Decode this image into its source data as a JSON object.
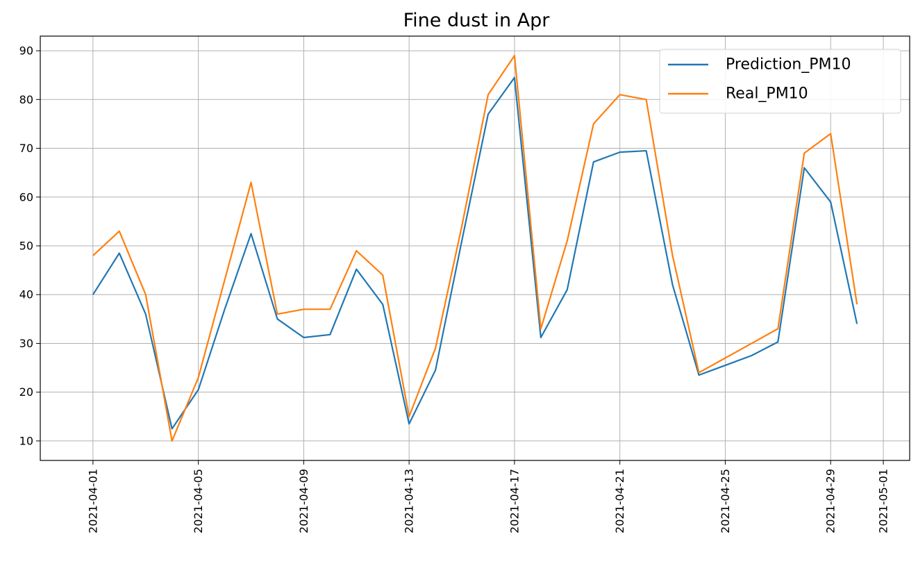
{
  "chart_data": {
    "type": "line",
    "title": "Fine dust in Apr",
    "xlabel": "",
    "ylabel": "",
    "x_ticks": [
      "2021-04-01",
      "2021-04-05",
      "2021-04-09",
      "2021-04-13",
      "2021-04-17",
      "2021-04-21",
      "2021-04-25",
      "2021-04-29",
      "2021-05-01"
    ],
    "y_ticks": [
      10,
      20,
      30,
      40,
      50,
      60,
      70,
      80,
      90
    ],
    "xlim": [
      "2021-03-30",
      "2021-05-02"
    ],
    "ylim": [
      6,
      93
    ],
    "grid": true,
    "legend_position": "top-right",
    "x": [
      "2021-04-01",
      "2021-04-02",
      "2021-04-03",
      "2021-04-04",
      "2021-04-05",
      "2021-04-06",
      "2021-04-07",
      "2021-04-08",
      "2021-04-09",
      "2021-04-10",
      "2021-04-11",
      "2021-04-12",
      "2021-04-13",
      "2021-04-14",
      "2021-04-15",
      "2021-04-16",
      "2021-04-17",
      "2021-04-18",
      "2021-04-19",
      "2021-04-20",
      "2021-04-21",
      "2021-04-22",
      "2021-04-23",
      "2021-04-24",
      "2021-04-25",
      "2021-04-26",
      "2021-04-27",
      "2021-04-28",
      "2021-04-29",
      "2021-04-30"
    ],
    "series": [
      {
        "name": "Prediction_PM10",
        "color": "#1f77b4",
        "values": [
          40,
          48.5,
          36,
          12.5,
          20.5,
          37,
          52.5,
          35,
          31.2,
          31.8,
          45.2,
          38,
          13.5,
          24.5,
          51,
          77,
          84.5,
          31.2,
          41,
          67.2,
          69.2,
          69.5,
          42,
          23.5,
          25.5,
          27.5,
          30.3,
          66,
          59,
          34
        ]
      },
      {
        "name": "Real_PM10",
        "color": "#ff7f0e",
        "values": [
          48,
          53,
          40,
          10,
          23,
          43,
          63,
          36,
          37,
          37,
          49,
          44,
          15,
          29,
          54,
          81,
          89,
          33,
          51,
          75,
          81,
          80,
          48,
          24,
          27,
          30,
          33,
          69,
          73,
          38
        ]
      }
    ]
  }
}
